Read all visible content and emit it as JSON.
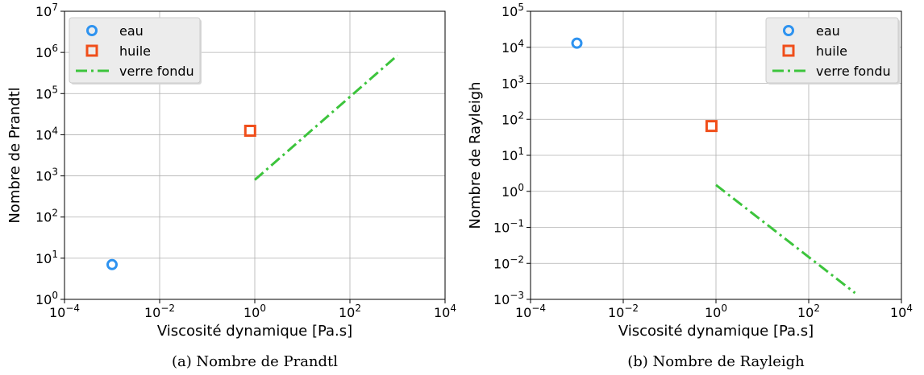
{
  "chart_data": [
    {
      "type": "scatter",
      "id": "a",
      "xlabel": "Viscosité dynamique [Pa.s]",
      "ylabel": "Nombre de Prandtl",
      "caption": "(a) Nombre de Prandtl",
      "xscale": "log",
      "yscale": "log",
      "xlim": [
        0.0001,
        10000
      ],
      "ylim": [
        1,
        10000000
      ],
      "x_ticks": [
        {
          "base": "10",
          "exp": "−4",
          "value": 0.0001
        },
        {
          "base": "10",
          "exp": "−2",
          "value": 0.01
        },
        {
          "base": "10",
          "exp": "0",
          "value": 1
        },
        {
          "base": "10",
          "exp": "2",
          "value": 100
        },
        {
          "base": "10",
          "exp": "4",
          "value": 10000
        }
      ],
      "y_ticks": [
        {
          "base": "10",
          "exp": "0",
          "value": 1
        },
        {
          "base": "10",
          "exp": "1",
          "value": 10
        },
        {
          "base": "10",
          "exp": "2",
          "value": 100
        },
        {
          "base": "10",
          "exp": "3",
          "value": 1000
        },
        {
          "base": "10",
          "exp": "4",
          "value": 10000
        },
        {
          "base": "10",
          "exp": "5",
          "value": 100000
        },
        {
          "base": "10",
          "exp": "6",
          "value": 1000000
        },
        {
          "base": "10",
          "exp": "7",
          "value": 10000000
        }
      ],
      "grid": true,
      "legend_position": "top-left",
      "series": [
        {
          "name": "eau",
          "marker": "circle",
          "color": "#2e93f0",
          "points": [
            {
              "x": 0.001,
              "y": 7
            }
          ]
        },
        {
          "name": "huile",
          "marker": "square",
          "color": "#f04e1a",
          "points": [
            {
              "x": 0.8,
              "y": 12500
            }
          ]
        },
        {
          "name": "verre fondu",
          "marker": "dashdot-line",
          "color": "#3cc43c",
          "points": [
            {
              "x": 1,
              "y": 800
            },
            {
              "x": 1000,
              "y": 850000
            }
          ]
        }
      ]
    },
    {
      "type": "scatter",
      "id": "b",
      "xlabel": "Viscosité dynamique [Pa.s]",
      "ylabel": "Nombre de Rayleigh",
      "caption": "(b) Nombre de Rayleigh",
      "xscale": "log",
      "yscale": "log",
      "xlim": [
        0.0001,
        10000
      ],
      "ylim": [
        0.001,
        100000
      ],
      "x_ticks": [
        {
          "base": "10",
          "exp": "−4",
          "value": 0.0001
        },
        {
          "base": "10",
          "exp": "−2",
          "value": 0.01
        },
        {
          "base": "10",
          "exp": "0",
          "value": 1
        },
        {
          "base": "10",
          "exp": "2",
          "value": 100
        },
        {
          "base": "10",
          "exp": "4",
          "value": 10000
        }
      ],
      "y_ticks": [
        {
          "base": "10",
          "exp": "−3",
          "value": 0.001
        },
        {
          "base": "10",
          "exp": "−2",
          "value": 0.01
        },
        {
          "base": "10",
          "exp": "−1",
          "value": 0.1
        },
        {
          "base": "10",
          "exp": "0",
          "value": 1
        },
        {
          "base": "10",
          "exp": "1",
          "value": 10
        },
        {
          "base": "10",
          "exp": "2",
          "value": 100
        },
        {
          "base": "10",
          "exp": "3",
          "value": 1000
        },
        {
          "base": "10",
          "exp": "4",
          "value": 10000
        },
        {
          "base": "10",
          "exp": "5",
          "value": 100000
        }
      ],
      "grid": true,
      "legend_position": "top-right",
      "series": [
        {
          "name": "eau",
          "marker": "circle",
          "color": "#2e93f0",
          "points": [
            {
              "x": 0.001,
              "y": 13000
            }
          ]
        },
        {
          "name": "huile",
          "marker": "square",
          "color": "#f04e1a",
          "points": [
            {
              "x": 0.8,
              "y": 65
            }
          ]
        },
        {
          "name": "verre fondu",
          "marker": "dashdot-line",
          "color": "#3cc43c",
          "points": [
            {
              "x": 1,
              "y": 1.5
            },
            {
              "x": 1000,
              "y": 0.0015
            }
          ]
        }
      ]
    }
  ]
}
